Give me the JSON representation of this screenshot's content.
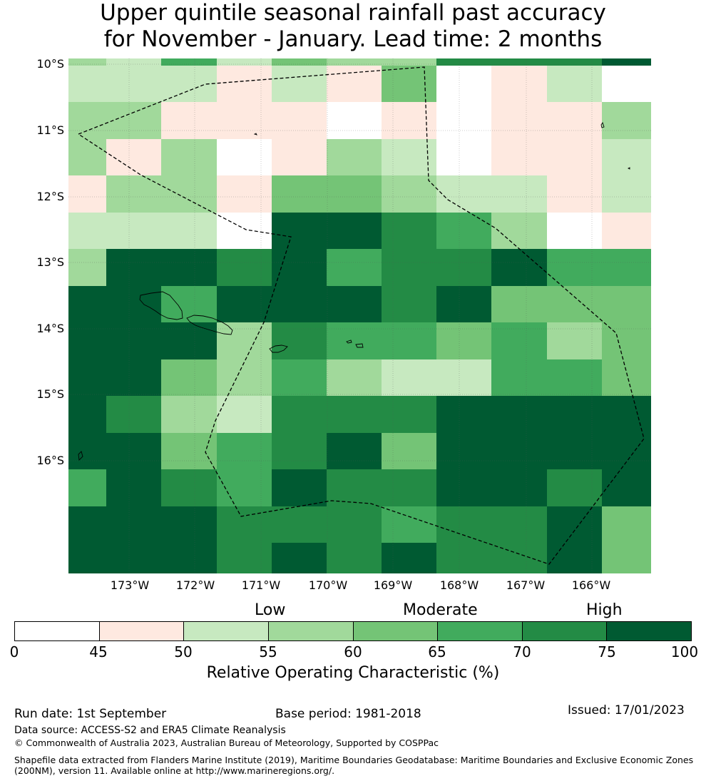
{
  "title": {
    "line1": "Upper quintile seasonal rainfall past accuracy",
    "line2": "for November - January. Lead time: 2 months"
  },
  "map": {
    "lat_labels": [
      "10°S",
      "11°S",
      "12°S",
      "13°S",
      "14°S",
      "15°S",
      "16°S"
    ],
    "lon_labels": [
      "173°W",
      "172°W",
      "171°W",
      "170°W",
      "169°W",
      "168°W",
      "167°W",
      "166°W"
    ],
    "grid_rows": [
      [
        3,
        2,
        5,
        2,
        4,
        3,
        3,
        6,
        6,
        6,
        7
      ],
      [
        2,
        2,
        2,
        1,
        2,
        1,
        4,
        0,
        1,
        2,
        0
      ],
      [
        3,
        3,
        1,
        1,
        1,
        0,
        1,
        0,
        1,
        1,
        3
      ],
      [
        3,
        1,
        3,
        0,
        1,
        3,
        2,
        0,
        1,
        1,
        2
      ],
      [
        1,
        3,
        3,
        1,
        4,
        4,
        3,
        2,
        2,
        1,
        2
      ],
      [
        2,
        2,
        2,
        0,
        7,
        7,
        6,
        5,
        3,
        0,
        1
      ],
      [
        3,
        7,
        7,
        6,
        7,
        5,
        6,
        6,
        7,
        5,
        5
      ],
      [
        7,
        7,
        5,
        7,
        7,
        7,
        6,
        7,
        4,
        4,
        4
      ],
      [
        7,
        7,
        7,
        3,
        6,
        5,
        5,
        4,
        5,
        3,
        4
      ],
      [
        7,
        7,
        4,
        3,
        5,
        3,
        2,
        2,
        5,
        5,
        4
      ],
      [
        7,
        6,
        3,
        2,
        6,
        6,
        6,
        7,
        7,
        7,
        7
      ],
      [
        7,
        7,
        4,
        5,
        6,
        7,
        4,
        7,
        7,
        7,
        7
      ],
      [
        5,
        7,
        6,
        5,
        7,
        6,
        6,
        7,
        7,
        6,
        7
      ],
      [
        7,
        7,
        7,
        6,
        6,
        6,
        5,
        6,
        6,
        7,
        4
      ],
      [
        7,
        7,
        7,
        6,
        7,
        6,
        7,
        6,
        6,
        7,
        4
      ]
    ]
  },
  "legend": {
    "categories": [
      "Low",
      "Moderate",
      "High"
    ],
    "colors": [
      "#ffffff",
      "#fee9e0",
      "#c7e9c0",
      "#a1d99b",
      "#74c476",
      "#41ab5d",
      "#238b45",
      "#005a32"
    ],
    "ticks": [
      "0",
      "45",
      "50",
      "55",
      "60",
      "65",
      "70",
      "75",
      "100"
    ],
    "title": "Relative Operating Characteristic (%)"
  },
  "footer": {
    "run_date": "Run date: 1st September",
    "base_period": "Base period: 1981-2018",
    "issued": "Issued: 17/01/2023",
    "data_source": "Data source: ACCESS-S2 and ERA5 Climate Reanalysis",
    "copyright": "© Commonwealth of Australia 2023, Australian Bureau of Meteorology, Supported by COSPPac",
    "shapefile_line1": "Shapefile data extracted from Flanders Marine Institute (2019), Maritime Boundaries Geodatabase: Maritime Boundaries and Exclusive Economic Zones",
    "shapefile_line2": "(200NM), version 11. Available online at http://www.marineregions.org/."
  }
}
